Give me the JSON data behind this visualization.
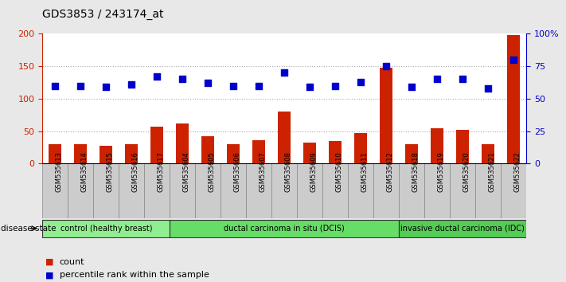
{
  "title": "GDS3853 / 243174_at",
  "samples": [
    "GSM535613",
    "GSM535614",
    "GSM535615",
    "GSM535616",
    "GSM535617",
    "GSM535604",
    "GSM535605",
    "GSM535606",
    "GSM535607",
    "GSM535608",
    "GSM535609",
    "GSM535610",
    "GSM535611",
    "GSM535612",
    "GSM535618",
    "GSM535619",
    "GSM535620",
    "GSM535621",
    "GSM535622"
  ],
  "counts": [
    30,
    30,
    27,
    30,
    57,
    62,
    42,
    30,
    36,
    80,
    32,
    35,
    47,
    148,
    30,
    55,
    52,
    30,
    198
  ],
  "percentiles": [
    60,
    60,
    59,
    61,
    67,
    65,
    62,
    60,
    60,
    70,
    59,
    60,
    63,
    75,
    59,
    65,
    65,
    58,
    80
  ],
  "groups": [
    {
      "label": "control (healthy breast)",
      "start": 0,
      "end": 5,
      "color": "#90ee90"
    },
    {
      "label": "ductal carcinoma in situ (DCIS)",
      "start": 5,
      "end": 14,
      "color": "#66dd66"
    },
    {
      "label": "invasive ductal carcinoma (IDC)",
      "start": 14,
      "end": 19,
      "color": "#55cc55"
    }
  ],
  "bar_color": "#cc2200",
  "dot_color": "#0000cc",
  "left_ylim": [
    0,
    200
  ],
  "right_ylim": [
    0,
    100
  ],
  "left_yticks": [
    0,
    50,
    100,
    150,
    200
  ],
  "right_yticks": [
    0,
    25,
    50,
    75,
    100
  ],
  "right_yticklabels": [
    "0",
    "25",
    "50",
    "75",
    "100%"
  ],
  "left_ycolor": "#cc2200",
  "right_ycolor": "#0000cc",
  "bg_color": "#e8e8e8",
  "plot_bg": "#ffffff",
  "legend_count_label": "count",
  "legend_pct_label": "percentile rank within the sample",
  "disease_state_label": "disease state",
  "bar_width": 0.5,
  "dot_size": 40,
  "grid_color": "#aaaaaa",
  "tick_bg": "#cccccc"
}
